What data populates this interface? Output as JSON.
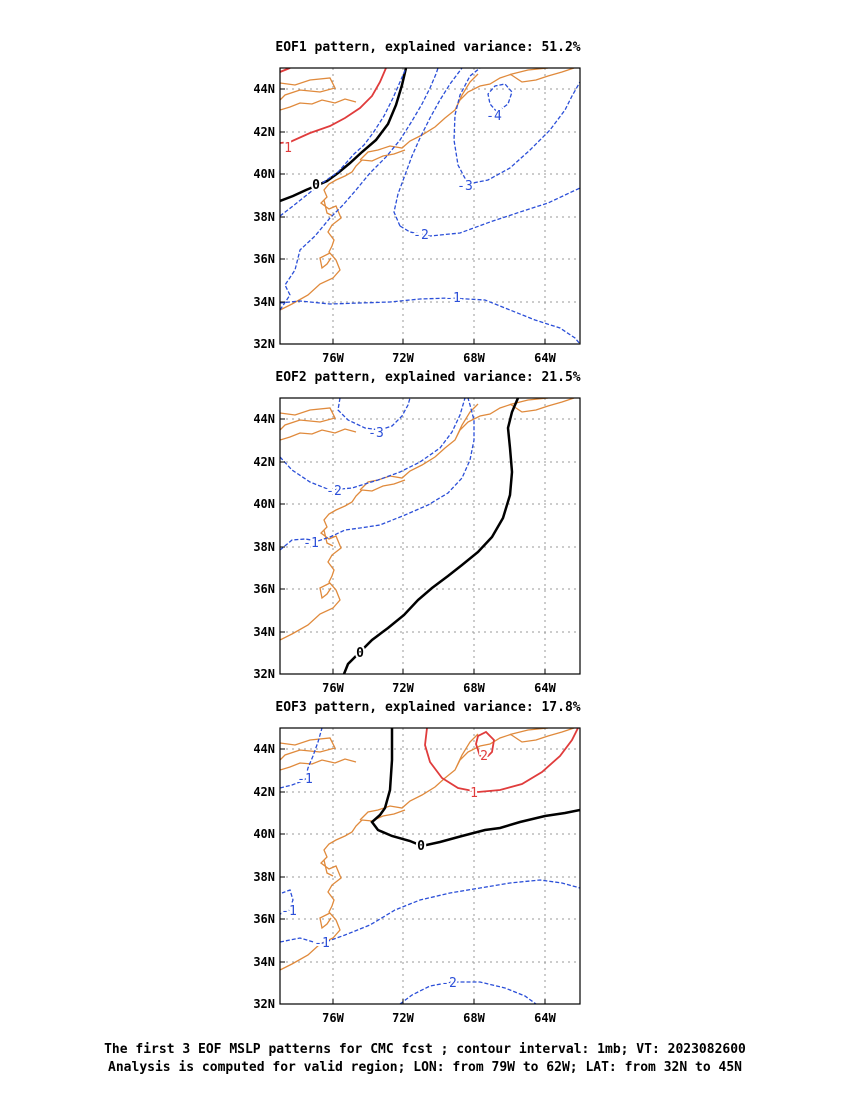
{
  "colors": {
    "coast": "#e08a3c",
    "negative": "#2b4fd8",
    "positive": "#e03c3c",
    "zero": "#000000",
    "grid": "#9a9a9a"
  },
  "axes": {
    "lon_range": [
      -79,
      -62
    ],
    "lat_range": [
      32,
      45
    ],
    "x_ticks": [
      "76W",
      "72W",
      "68W",
      "64W"
    ],
    "y_ticks": [
      "32N",
      "34N",
      "36N",
      "38N",
      "40N",
      "42N",
      "44N"
    ]
  },
  "panels": [
    {
      "title": "EOF1 pattern, explained variance: 51.2%",
      "contour_labels": [
        "1",
        "0",
        "-4",
        "-3",
        "-2",
        "-1"
      ]
    },
    {
      "title": "EOF2 pattern, explained variance: 21.5%",
      "contour_labels": [
        "-3",
        "-2",
        "-1",
        "0"
      ]
    },
    {
      "title": "EOF3 pattern, explained variance: 17.8%",
      "contour_labels": [
        "2",
        "1",
        "0",
        "-1",
        "-1",
        "-1",
        "-2"
      ]
    }
  ],
  "caption": {
    "line1": "The first 3 EOF MSLP patterns for CMC fcst ; contour interval: 1mb; VT: 2023082600",
    "line2": "Analysis is computed for valid region; LON: from 79W to 62W; LAT: from 32N to 45N"
  }
}
